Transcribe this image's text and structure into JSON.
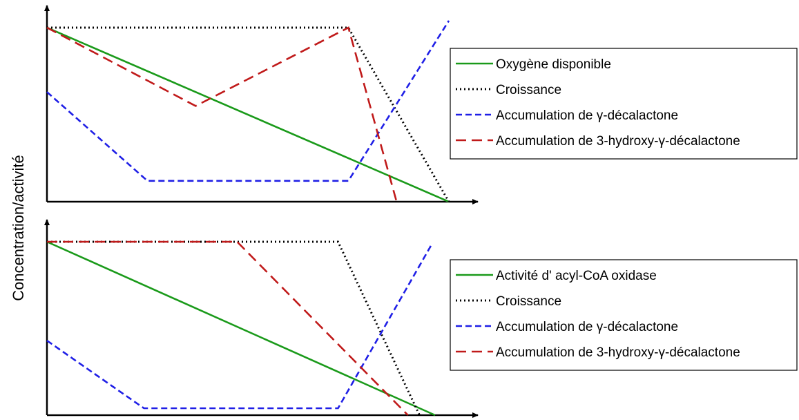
{
  "ylabel": "Concentration/activité",
  "chart_data": [
    {
      "type": "line",
      "title": "",
      "xlabel": "",
      "ylabel": "Concentration/activité",
      "grid": false,
      "legend_position": "right",
      "xlim": [
        0,
        10
      ],
      "ylim": [
        0,
        10
      ],
      "series": [
        {
          "name": "Oxygène disponible",
          "color": "#1a9a1a",
          "dash": "solid",
          "points": [
            [
              0,
              10
            ],
            [
              10,
              0
            ]
          ]
        },
        {
          "name": "Croissance",
          "color": "#000000",
          "dash": "dotted",
          "points": [
            [
              0,
              10
            ],
            [
              7.5,
              10
            ],
            [
              10,
              0
            ]
          ]
        },
        {
          "name": "Accumulation de γ-décalactone",
          "color": "#1f1fe6",
          "dash": "dashed",
          "points": [
            [
              0,
              6.3
            ],
            [
              2.5,
              1.2
            ],
            [
              7.5,
              1.2
            ],
            [
              10,
              10.4
            ]
          ]
        },
        {
          "name": "Accumulation de 3-hydroxy-γ-décalactone",
          "color": "#c01a1a",
          "dash": "long-dashed",
          "points": [
            [
              0,
              10
            ],
            [
              3.7,
              5.5
            ],
            [
              7.5,
              10
            ],
            [
              8.7,
              0
            ]
          ]
        }
      ]
    },
    {
      "type": "line",
      "title": "",
      "xlabel": "",
      "ylabel": "Concentration/activité",
      "grid": false,
      "legend_position": "right",
      "xlim": [
        0,
        10
      ],
      "ylim": [
        0,
        10
      ],
      "series": [
        {
          "name": "Activité d' acyl-CoA oxidase",
          "color": "#1a9a1a",
          "dash": "solid",
          "points": [
            [
              0,
              10
            ],
            [
              10,
              0
            ]
          ]
        },
        {
          "name": "Croissance",
          "color": "#000000",
          "dash": "dotted",
          "points": [
            [
              0,
              10
            ],
            [
              7.5,
              10
            ],
            [
              9.6,
              0
            ]
          ]
        },
        {
          "name": "Accumulation de γ-décalactone",
          "color": "#1f1fe6",
          "dash": "dashed",
          "points": [
            [
              0,
              4.3
            ],
            [
              2.5,
              0.4
            ],
            [
              7.5,
              0.4
            ],
            [
              9.9,
              9.8
            ]
          ]
        },
        {
          "name": "Accumulation de 3-hydroxy-γ-décalactone",
          "color": "#c01a1a",
          "dash": "long-dashed",
          "points": [
            [
              0,
              10
            ],
            [
              4.9,
              10
            ],
            [
              9.3,
              0
            ]
          ]
        }
      ]
    }
  ]
}
